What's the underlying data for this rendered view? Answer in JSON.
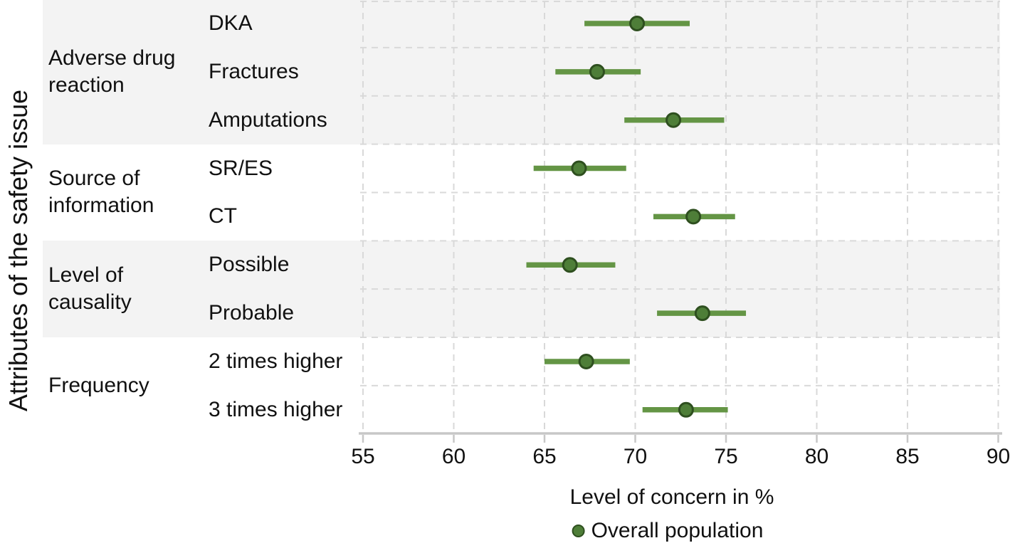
{
  "colors": {
    "ci_line": "#649545",
    "marker_fill": "#4e7e38",
    "marker_stroke": "#2e4f1f",
    "band_shade": "#f3f3f3",
    "band_plain": "#ffffff",
    "gridline": "#d9d9d9",
    "axis_line": "#c7c7c7",
    "text": "#111111"
  },
  "chart_data": {
    "type": "scatter",
    "subtype": "forest-plot-dot-with-ci",
    "orientation": "horizontal",
    "grid": "dashed",
    "y_axis_label": "Attributes of the safety issue",
    "x_axis": {
      "label": "Level of concern in %",
      "min": 55,
      "max": 90,
      "ticks": [
        55,
        60,
        65,
        70,
        75,
        80,
        85,
        90
      ]
    },
    "legend": [
      {
        "name": "Overall population",
        "color": "#4e7e38"
      }
    ],
    "legend_position": "bottom",
    "groups": [
      {
        "label": "Adverse drug reaction",
        "label_lines": [
          "Adverse drug",
          "reaction"
        ],
        "shaded": true,
        "items": [
          {
            "label": "DKA",
            "value": 70.1,
            "ci_low": 67.2,
            "ci_high": 73.0
          },
          {
            "label": "Fractures",
            "value": 67.9,
            "ci_low": 65.6,
            "ci_high": 70.3
          },
          {
            "label": "Amputations",
            "value": 72.1,
            "ci_low": 69.4,
            "ci_high": 74.9
          }
        ]
      },
      {
        "label": "Source of information",
        "label_lines": [
          "Source of",
          "information"
        ],
        "shaded": false,
        "items": [
          {
            "label": "SR/ES",
            "value": 66.9,
            "ci_low": 64.4,
            "ci_high": 69.5
          },
          {
            "label": "CT",
            "value": 73.2,
            "ci_low": 71.0,
            "ci_high": 75.5
          }
        ]
      },
      {
        "label": "Level of causality",
        "label_lines": [
          "Level of",
          "causality"
        ],
        "shaded": true,
        "items": [
          {
            "label": "Possible",
            "value": 66.4,
            "ci_low": 64.0,
            "ci_high": 68.9
          },
          {
            "label": "Probable",
            "value": 73.7,
            "ci_low": 71.2,
            "ci_high": 76.1
          }
        ]
      },
      {
        "label": "Frequency",
        "label_lines": [
          "Frequency"
        ],
        "shaded": false,
        "items": [
          {
            "label": "2 times higher",
            "value": 67.3,
            "ci_low": 65.0,
            "ci_high": 69.7
          },
          {
            "label": "3 times higher",
            "value": 72.8,
            "ci_low": 70.4,
            "ci_high": 75.1
          }
        ]
      }
    ]
  }
}
